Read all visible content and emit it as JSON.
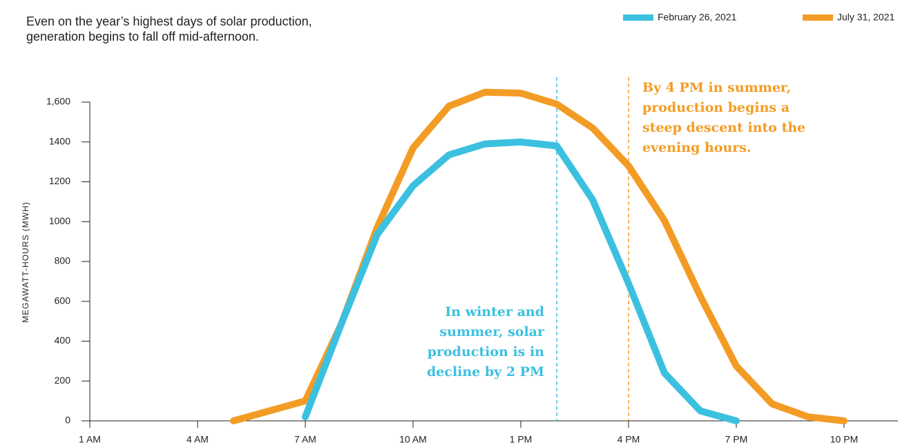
{
  "chart_data": {
    "type": "line",
    "subtitle": "Even on the year’s highest days of solar production, generation begins to fall off mid-afternoon.",
    "y_label": "MEGAWATT-HOURS (MWH)",
    "x": [
      5,
      6,
      7,
      8,
      9,
      10,
      11,
      12,
      13,
      14,
      15,
      16,
      17,
      18,
      19,
      20,
      21,
      22
    ],
    "series": [
      {
        "name": "February 26, 2021",
        "color": "#3cc0e0",
        "values": [
          null,
          null,
          20,
          485,
          935,
          1180,
          1335,
          1390,
          1400,
          1380,
          1110,
          690,
          240,
          50,
          0,
          null,
          null,
          null
        ]
      },
      {
        "name": "July 31, 2021",
        "color": "#f39c25",
        "values": [
          0,
          50,
          100,
          485,
          970,
          1370,
          1580,
          1650,
          1645,
          1590,
          1470,
          1280,
          1005,
          625,
          275,
          85,
          20,
          0
        ]
      }
    ],
    "xlim": [
      1,
      23.5
    ],
    "xticks": [
      {
        "value": 1,
        "label": "1 AM"
      },
      {
        "value": 4,
        "label": "4 AM"
      },
      {
        "value": 7,
        "label": "7 AM"
      },
      {
        "value": 10,
        "label": "10 AM"
      },
      {
        "value": 13,
        "label": "1 PM"
      },
      {
        "value": 16,
        "label": "4 PM"
      },
      {
        "value": 19,
        "label": "7 PM"
      },
      {
        "value": 22,
        "label": "10 PM"
      }
    ],
    "ylim": [
      0,
      1600
    ],
    "yticks": [
      0,
      200,
      400,
      600,
      800,
      1000,
      1200,
      1400,
      {
        "value": 1600,
        "label": "1,600"
      }
    ],
    "annotations": [
      {
        "x": 14,
        "color": "#3cc0e0",
        "lines": [
          "In winter and",
          "summer, solar",
          "production is in",
          "decline by 2 PM"
        ]
      },
      {
        "x": 16,
        "color": "#f39c25",
        "lines": [
          "By 4 PM in summer,",
          "production begins a",
          "steep descent into the",
          "evening hours."
        ]
      }
    ]
  }
}
